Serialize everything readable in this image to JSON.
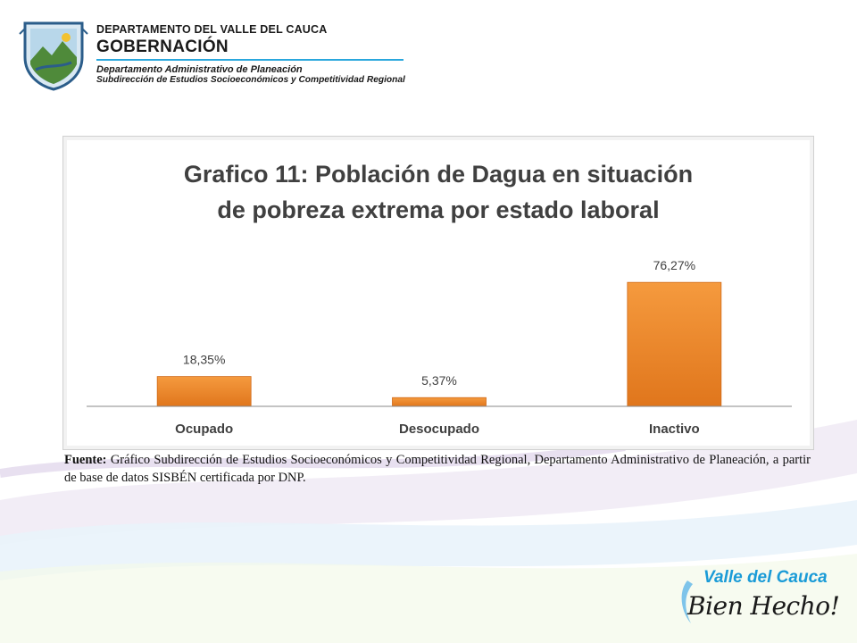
{
  "header": {
    "department": "DEPARTAMENTO DEL VALLE DEL CAUCA",
    "government": "GOBERNACIÓN",
    "admin_dept": "Departamento  Administrativo de Planeación",
    "subdirection": "Subdirección de Estudios Socioeconómicos y Competitividad Regional"
  },
  "chart_data": {
    "type": "bar",
    "title": "Grafico 11: Población de Dagua en situación\nde pobreza extrema por estado laboral",
    "categories": [
      "Ocupado",
      "Desocupado",
      "Inactivo"
    ],
    "values": [
      18.35,
      5.37,
      76.27
    ],
    "data_labels": [
      "18,35%",
      "5,37%",
      "76,27%"
    ],
    "xlabel": "",
    "ylabel": "",
    "ylim": [
      0,
      100
    ],
    "grid": false,
    "legend": "none",
    "bar_color": "#f0892a"
  },
  "source": {
    "label": "Fuente:",
    "text": " Gráfico Subdirección de Estudios Socioeconómicos y Competitividad Regional, Departamento Administrativo de Planeación, a partir de base de datos SISBÉN certificada por DNP."
  },
  "slogan": {
    "line1": "Valle del Cauca",
    "line2": "Bien Hecho!"
  }
}
